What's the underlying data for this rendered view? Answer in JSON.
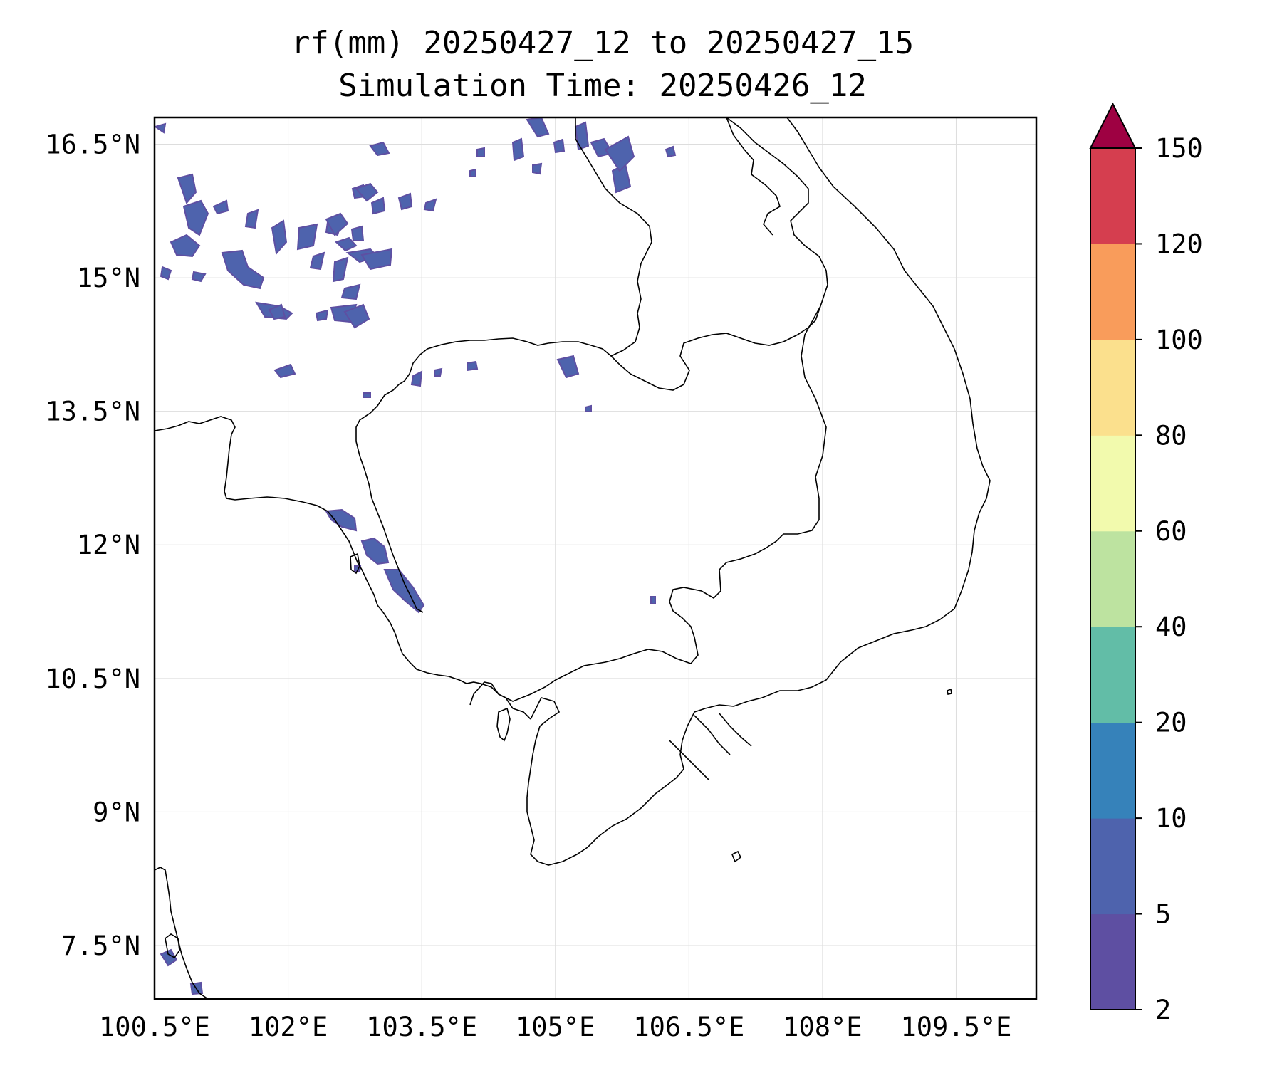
{
  "title": {
    "line1": "rf(mm) 20250427_12 to 20250427_15",
    "line2": "Simulation Time: 20250426_12"
  },
  "map": {
    "lon_range": [
      100.5,
      110.4
    ],
    "lat_range": [
      6.9,
      16.8
    ],
    "lon_ticks": [
      {
        "value": 100.5,
        "label": "100.5°E"
      },
      {
        "value": 102.0,
        "label": "102°E"
      },
      {
        "value": 103.5,
        "label": "103.5°E"
      },
      {
        "value": 105.0,
        "label": "105°E"
      },
      {
        "value": 106.5,
        "label": "106.5°E"
      },
      {
        "value": 108.0,
        "label": "108°E"
      },
      {
        "value": 109.5,
        "label": "109.5°E"
      }
    ],
    "lat_ticks": [
      {
        "value": 16.5,
        "label": "16.5°N"
      },
      {
        "value": 15.0,
        "label": "15°N"
      },
      {
        "value": 13.5,
        "label": "13.5°N"
      },
      {
        "value": 12.0,
        "label": "12°N"
      },
      {
        "value": 10.5,
        "label": "10.5°N"
      },
      {
        "value": 9.0,
        "label": "9°N"
      },
      {
        "value": 7.5,
        "label": "7.5°N"
      }
    ],
    "gridlines": true,
    "region": "Cambodia / southern Indochina"
  },
  "colorbar": {
    "levels": [
      "2",
      "5",
      "10",
      "20",
      "40",
      "60",
      "80",
      "100",
      "120",
      "150"
    ],
    "colors": [
      "#5e4fa2",
      "#4e63ad",
      "#3682ba",
      "#62bda7",
      "#bde3a0",
      "#f2faad",
      "#fbe08d",
      "#f99c5b",
      "#d53e4f"
    ],
    "extend_color": "#9e0142",
    "extend": "max"
  },
  "rain_areas": [
    {
      "lon": 100.95,
      "lat": 16.2,
      "value": 5
    },
    {
      "lon": 101.0,
      "lat": 15.6,
      "value": 5
    },
    {
      "lon": 101.5,
      "lat": 15.3,
      "value": 5
    },
    {
      "lon": 101.8,
      "lat": 15.5,
      "value": 5
    },
    {
      "lon": 102.3,
      "lat": 15.6,
      "value": 5
    },
    {
      "lon": 101.8,
      "lat": 14.9,
      "value": 3
    },
    {
      "lon": 102.4,
      "lat": 14.8,
      "value": 5
    },
    {
      "lon": 104.2,
      "lat": 16.6,
      "value": 3
    },
    {
      "lon": 104.7,
      "lat": 16.6,
      "value": 3
    },
    {
      "lon": 105.2,
      "lat": 16.4,
      "value": 5
    },
    {
      "lon": 104.85,
      "lat": 14.2,
      "value": 3
    },
    {
      "lon": 101.9,
      "lat": 14.1,
      "value": 3
    },
    {
      "lon": 103.4,
      "lat": 14.0,
      "value": 3
    },
    {
      "lon": 102.25,
      "lat": 12.4,
      "value": 3
    },
    {
      "lon": 102.6,
      "lat": 12.1,
      "value": 5
    },
    {
      "lon": 102.9,
      "lat": 11.5,
      "value": 5
    },
    {
      "lon": 100.6,
      "lat": 7.5,
      "value": 3
    }
  ]
}
